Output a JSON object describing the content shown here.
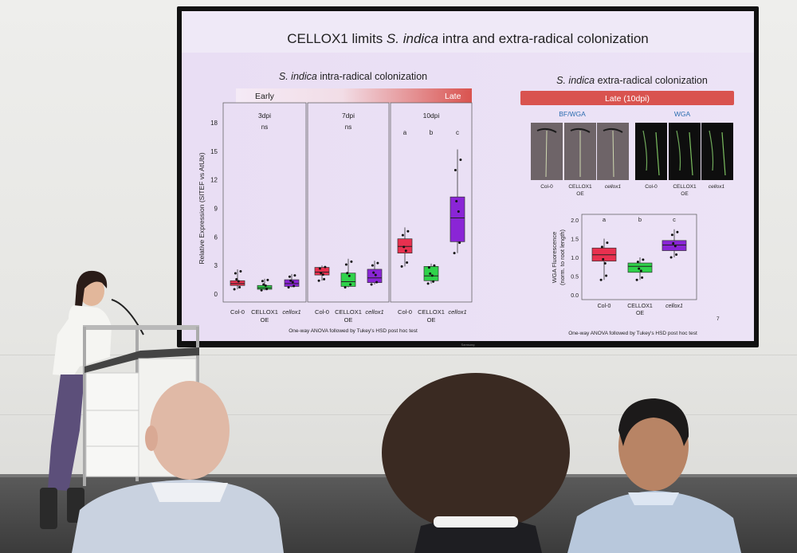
{
  "slide": {
    "title_prefix": "CELLOX1 limits ",
    "title_italic": "S. indica",
    "title_suffix": " intra and extra-radical colonization",
    "left_heading_italic": "S. indica",
    "left_heading_rest": " intra-radical colonization",
    "right_heading_italic": "S. indica",
    "right_heading_rest": " extra-radical colonization",
    "early_label": "Early",
    "late_label": "Late",
    "late_right_label": "Late (10dpi)",
    "left_footnote": "One-way ANOVA followed by Tukey's HSD post hoc test",
    "right_footnote": "One-way ANOVA followed by Tukey's HSD post hoc test",
    "page_number": "7",
    "micro_label_left": "BF/WGA",
    "micro_label_right": "WGA",
    "micro_captions": [
      "Col-0",
      "CELLOX1",
      "OE",
      "cellox1"
    ],
    "screen_brand": "Samsung"
  },
  "colors": {
    "col0": "#e8304f",
    "oe": "#2fd24a",
    "cellox": "#8a25d6"
  },
  "chart_data": [
    {
      "type": "box",
      "ylabel": "Relative Expression (SlTEF vs AtUbi)",
      "ylim": [
        0,
        18
      ],
      "yticks": [
        0,
        3,
        6,
        9,
        12,
        15,
        18
      ],
      "categories": [
        "Col-0",
        "CELLOX1 OE",
        "cellox1"
      ],
      "panels": [
        {
          "title": "3dpi",
          "sig": "ns",
          "boxes": [
            {
              "q1": 0.9,
              "median": 1.1,
              "q3": 1.4,
              "min": 0.5,
              "max": 2.6
            },
            {
              "q1": 0.5,
              "median": 0.65,
              "q3": 0.9,
              "min": 0.4,
              "max": 1.6
            },
            {
              "q1": 0.8,
              "median": 1.1,
              "q3": 1.5,
              "min": 0.7,
              "max": 2.1
            }
          ]
        },
        {
          "title": "7dpi",
          "sig": "ns",
          "boxes": [
            {
              "q1": 2.0,
              "median": 2.3,
              "q3": 2.8,
              "min": 1.4,
              "max": 3.0
            },
            {
              "q1": 0.8,
              "median": 1.3,
              "q3": 2.2,
              "min": 0.7,
              "max": 3.7
            },
            {
              "q1": 1.2,
              "median": 1.7,
              "q3": 2.6,
              "min": 1.0,
              "max": 3.5
            }
          ]
        },
        {
          "title": "10dpi",
          "sig_letters": [
            "a",
            "b",
            "c"
          ],
          "boxes": [
            {
              "q1": 4.3,
              "median": 5.0,
              "q3": 5.8,
              "min": 2.9,
              "max": 7.0
            },
            {
              "q1": 1.4,
              "median": 1.9,
              "q3": 2.9,
              "min": 1.1,
              "max": 3.2
            },
            {
              "q1": 5.5,
              "median": 8.0,
              "q3": 10.2,
              "min": 4.3,
              "max": 15.2
            }
          ]
        }
      ]
    },
    {
      "type": "box",
      "ylabel": "WGA Fluorescence (norm. to root length)",
      "ylim": [
        0,
        2.0
      ],
      "yticks": [
        0.0,
        0.5,
        1.0,
        1.5,
        2.0
      ],
      "ytick_labels": [
        "0.0",
        "0.5",
        "1.0",
        "1.5",
        "2.0"
      ],
      "categories": [
        "Col-0",
        "CELLOX1 OE",
        "cellox1"
      ],
      "sig_letters": [
        "a",
        "b",
        "c"
      ],
      "boxes": [
        {
          "q1": 0.9,
          "median": 1.07,
          "q3": 1.25,
          "min": 0.4,
          "max": 1.5
        },
        {
          "q1": 0.6,
          "median": 0.76,
          "q3": 0.85,
          "min": 0.4,
          "max": 1.0
        },
        {
          "q1": 1.18,
          "median": 1.33,
          "q3": 1.45,
          "min": 1.0,
          "max": 1.75
        }
      ]
    }
  ]
}
